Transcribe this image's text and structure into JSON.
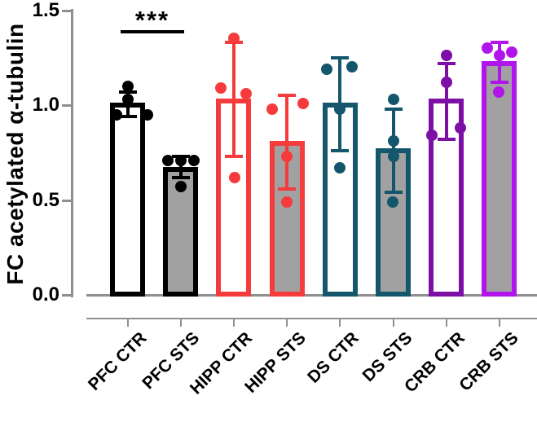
{
  "chart_data": {
    "type": "bar",
    "title": "",
    "xlabel": "",
    "ylabel": "FC acetylated α-tubulin",
    "ylim": [
      0,
      1.5
    ],
    "yticks": [
      "0.0",
      "0.5",
      "1.0",
      "1.5"
    ],
    "grid": false,
    "legend": "none",
    "categories": [
      "PFC CTR",
      "PFC STS",
      "HIPP CTR",
      "HIPP STS",
      "DS CTR",
      "DS STS",
      "CRB CTR",
      "CRB STS"
    ],
    "bars": [
      {
        "label": "PFC CTR",
        "group": "PFC",
        "condition": "CTR",
        "mean": 1.0,
        "err_low": 0.94,
        "err_high": 1.07,
        "points": [
          1.1,
          1.03,
          0.95,
          0.95
        ],
        "point_x_jitter": [
          0,
          0,
          -14,
          24
        ],
        "outline_color": "#000000",
        "fill_color": "#FFFFFF"
      },
      {
        "label": "PFC STS",
        "group": "PFC",
        "condition": "STS",
        "mean": 0.66,
        "err_low": 0.62,
        "err_high": 0.73,
        "points": [
          0.71,
          0.71,
          0.71,
          0.57
        ],
        "point_x_jitter": [
          -16,
          0,
          16,
          0
        ],
        "outline_color": "#000000",
        "fill_color": "#A1A1A1"
      },
      {
        "label": "HIPP CTR",
        "group": "HIPP",
        "condition": "CTR",
        "mean": 1.02,
        "err_low": 0.73,
        "err_high": 1.33,
        "points": [
          1.35,
          1.09,
          1.06,
          0.62
        ],
        "point_x_jitter": [
          0,
          -16,
          15,
          1
        ],
        "outline_color": "#F53B3B",
        "fill_color": "#FFFFFF"
      },
      {
        "label": "HIPP STS",
        "group": "HIPP",
        "condition": "STS",
        "mean": 0.8,
        "err_low": 0.56,
        "err_high": 1.05,
        "points": [
          1.01,
          0.98,
          0.73,
          0.49
        ],
        "point_x_jitter": [
          20,
          -18,
          0,
          0
        ],
        "outline_color": "#F53B3B",
        "fill_color": "#A1A1A1"
      },
      {
        "label": "DS CTR",
        "group": "DS",
        "condition": "CTR",
        "mean": 1.0,
        "err_low": 0.76,
        "err_high": 1.25,
        "points": [
          1.2,
          1.19,
          0.98,
          0.67
        ],
        "point_x_jitter": [
          15,
          -16,
          0,
          0
        ],
        "outline_color": "#14566B",
        "fill_color": "#FFFFFF"
      },
      {
        "label": "DS STS",
        "group": "DS",
        "condition": "STS",
        "mean": 0.76,
        "err_low": 0.54,
        "err_high": 0.98,
        "points": [
          1.03,
          0.81,
          0.73,
          0.49
        ],
        "point_x_jitter": [
          0,
          0,
          0,
          -1
        ],
        "outline_color": "#14566B",
        "fill_color": "#A1A1A1"
      },
      {
        "label": "CRB CTR",
        "group": "CRB",
        "condition": "CTR",
        "mean": 1.02,
        "err_low": 0.82,
        "err_high": 1.22,
        "points": [
          1.26,
          1.12,
          0.88,
          0.84
        ],
        "point_x_jitter": [
          0,
          0,
          17,
          -18
        ],
        "outline_color": "#7D0EA6",
        "fill_color": "#FFFFFF"
      },
      {
        "label": "CRB STS",
        "group": "CRB",
        "condition": "STS",
        "mean": 1.22,
        "err_low": 1.12,
        "err_high": 1.33,
        "points": [
          1.3,
          1.28,
          1.26,
          1.07
        ],
        "point_x_jitter": [
          -15,
          15,
          0,
          -1
        ],
        "outline_color": "#B214EC",
        "fill_color": "#A1A1A1"
      }
    ],
    "significance": {
      "comparison": [
        "PFC CTR",
        "PFC STS"
      ],
      "label": "***"
    },
    "style": {
      "axis_color": "#8F8F8F",
      "text_color": "#000000",
      "ctr_fill": "#FFFFFF",
      "sts_fill": "#A1A1A1",
      "group_colors": {
        "PFC": "#000000",
        "HIPP": "#F53B3B",
        "DS": "#14566B",
        "CRB": "#7D0EA6",
        "CRB_STS": "#B214EC"
      }
    }
  }
}
